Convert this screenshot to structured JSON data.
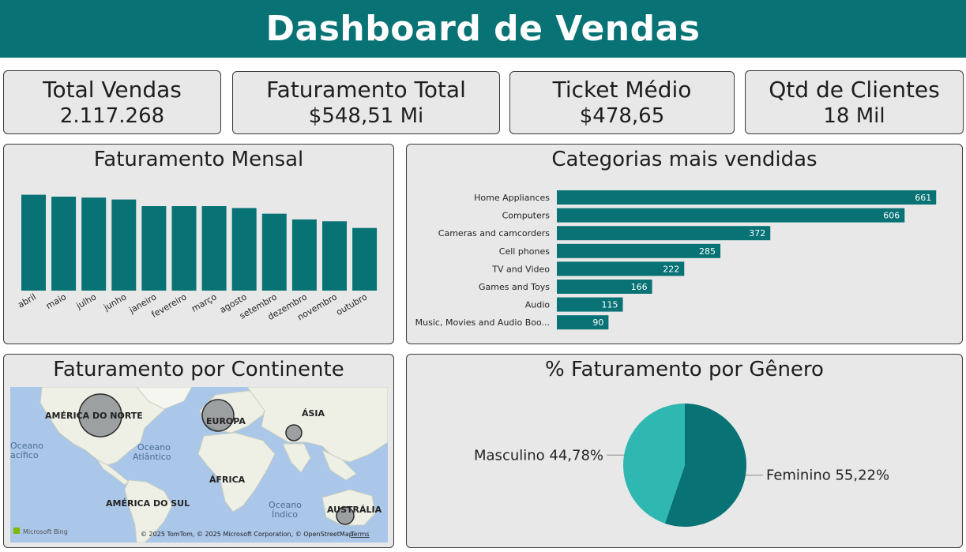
{
  "header": {
    "title": "Dashboard de Vendas"
  },
  "kpis": [
    {
      "label": "Total Vendas",
      "value": "2.117.268"
    },
    {
      "label": "Faturamento Total",
      "value": "$548,51 Mi"
    },
    {
      "label": "Ticket Médio",
      "value": "$478,65"
    },
    {
      "label": "Qtd de Clientes",
      "value": "18 Mil"
    }
  ],
  "monthly": {
    "title": "Faturamento Mensal"
  },
  "categories_panel": {
    "title": "Categorias mais vendidas"
  },
  "continent": {
    "title": "Faturamento por Continente",
    "labels": {
      "north_america": "AMÉRICA DO NORTE",
      "europe": "EUROPA",
      "asia": "ÁSIA",
      "africa": "ÁFRICA",
      "south_america": "AMÉRICA DO SUL",
      "australia": "AUSTRÁLIA",
      "ocean_atlantic_1": "Oceano",
      "ocean_atlantic_2": "Atlântico",
      "ocean_indian_1": "Oceano",
      "ocean_indian_2": "Índico",
      "ocean_pacific_1": "Oceano",
      "ocean_pacific_2": "acífico"
    },
    "attribution": "© 2025 TomTom, © 2025 Microsoft Corporation, © OpenStreetMap",
    "terms": "Terms",
    "bing": "Microsoft Bing"
  },
  "gender": {
    "title": "% Faturamento por Gênero"
  },
  "colors": {
    "teal": "#087275",
    "teal_light": "#2fb8b1",
    "panel_bg": "#e8e8e8"
  },
  "chart_data": [
    {
      "type": "bar",
      "title": "Faturamento Mensal",
      "categories": [
        "abril",
        "maio",
        "julho",
        "junho",
        "janeiro",
        "fevereiro",
        "março",
        "agosto",
        "setembro",
        "dezembro",
        "novembro",
        "outubro"
      ],
      "values": [
        50.5,
        49.5,
        49,
        48,
        44.5,
        44.5,
        44.5,
        43.5,
        40.5,
        37.5,
        36.5,
        33
      ],
      "ylim": [
        0,
        52
      ]
    },
    {
      "type": "bar",
      "orientation": "horizontal",
      "title": "Categorias mais vendidas",
      "categories": [
        "Home Appliances",
        "Computers",
        "Cameras and camcorders",
        "Cell phones",
        "TV and Video",
        "Games and Toys",
        "Audio",
        "Music, Movies and Audio Boo..."
      ],
      "values": [
        661,
        606,
        372,
        285,
        222,
        166,
        115,
        90
      ],
      "xlim": [
        0,
        700
      ]
    },
    {
      "type": "pie",
      "title": "% Faturamento por Gênero",
      "slices": [
        {
          "label": "Feminino",
          "value": 55.22,
          "display": "Feminino 55,22%",
          "color": "#087275"
        },
        {
          "label": "Masculino",
          "value": 44.78,
          "display": "Masculino 44,78%",
          "color": "#2fb8b1"
        }
      ]
    }
  ]
}
